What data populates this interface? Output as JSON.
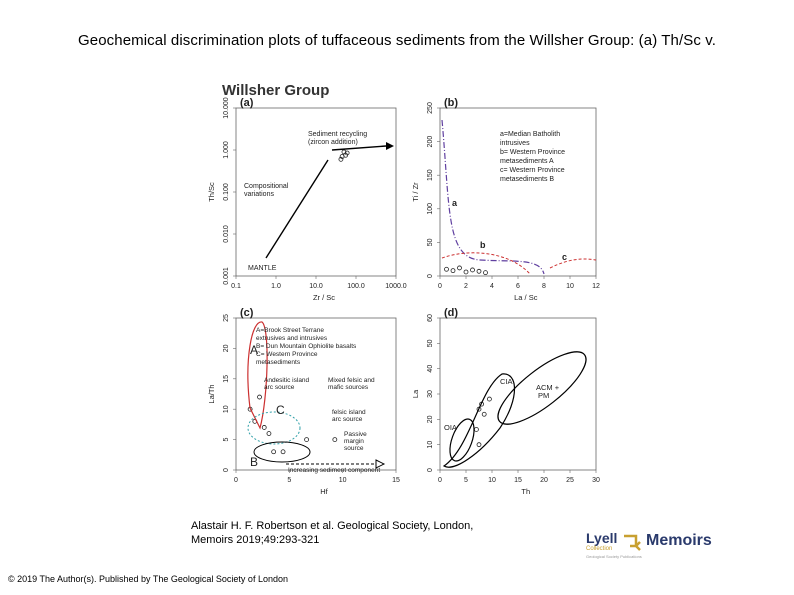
{
  "title": "Geochemical discrimination plots of tuffaceous sediments from the Willsher Group: (a) Th/Sc v.",
  "figure_heading": "Willsher Group",
  "citation_line1": "Alastair H. F. Robertson et al. Geological Society, London,",
  "citation_line2": "Memoirs 2019;49:293-321",
  "footer": "© 2019 The Author(s). Published by The Geological Society of London",
  "logo": {
    "lyell": "Lyell",
    "lyell_sub": "Collection",
    "lyell_tiny": "Geological Society Publications",
    "memoirs": "Memoirs",
    "accent_color": "#c8a030",
    "brand_color": "#2a3a6c"
  },
  "chart_data": [
    {
      "type": "scatter",
      "panel_label": "(a)",
      "xlabel": "Zr / Sc",
      "ylabel": "Th/Sc",
      "x_scale": "log",
      "y_scale": "log",
      "xlim": [
        0.1,
        1000
      ],
      "ylim": [
        0.001,
        10
      ],
      "x_ticks": [
        "0.1",
        "1.0",
        "10.0",
        "100.0",
        "1000.0"
      ],
      "y_ticks": [
        "0.001",
        "0.010",
        "0.100",
        "1.000",
        "10.000"
      ],
      "points": [
        {
          "x": 50,
          "y": 0.9
        },
        {
          "x": 55,
          "y": 0.75
        },
        {
          "x": 45,
          "y": 0.7
        },
        {
          "x": 60,
          "y": 0.85
        },
        {
          "x": 42,
          "y": 0.6
        }
      ],
      "annotations": [
        "Sediment recycling",
        "(zircon addition)",
        "Compositional",
        "variations",
        "MANTLE"
      ]
    },
    {
      "type": "scatter",
      "panel_label": "(b)",
      "xlabel": "La / Sc",
      "ylabel": "Ti / Zr",
      "xlim": [
        0,
        12
      ],
      "ylim": [
        0,
        250
      ],
      "x_ticks": [
        "0",
        "2",
        "4",
        "6",
        "8",
        "10",
        "12"
      ],
      "y_ticks": [
        "0",
        "50",
        "100",
        "150",
        "200",
        "250"
      ],
      "points": [
        {
          "x": 0.5,
          "y": 10
        },
        {
          "x": 1.0,
          "y": 8
        },
        {
          "x": 1.5,
          "y": 12
        },
        {
          "x": 2.0,
          "y": 6
        },
        {
          "x": 2.5,
          "y": 9
        },
        {
          "x": 3.0,
          "y": 7
        },
        {
          "x": 3.5,
          "y": 5
        }
      ],
      "annotations": [
        "a",
        "b",
        "c"
      ],
      "legend": [
        "a=Median Batholith",
        "intrusives",
        "b= Western Province",
        "metasediments A",
        "c= Western Province",
        "metasediments B"
      ]
    },
    {
      "type": "scatter",
      "panel_label": "(c)",
      "xlabel": "Hf",
      "ylabel": "La/Th",
      "xlim": [
        0,
        17
      ],
      "ylim": [
        0,
        25
      ],
      "x_ticks": [
        "0",
        "5",
        "10",
        "15"
      ],
      "y_ticks": [
        "0",
        "5",
        "10",
        "15",
        "20",
        "25"
      ],
      "points": [
        {
          "x": 1.5,
          "y": 10
        },
        {
          "x": 2.0,
          "y": 8
        },
        {
          "x": 2.5,
          "y": 12
        },
        {
          "x": 3.0,
          "y": 7
        },
        {
          "x": 3.5,
          "y": 6
        },
        {
          "x": 4.0,
          "y": 3
        },
        {
          "x": 5.0,
          "y": 3
        },
        {
          "x": 7.5,
          "y": 5
        },
        {
          "x": 10.5,
          "y": 5
        }
      ],
      "annotations": [
        "A",
        "B",
        "C",
        "Andesitic island",
        "arc source",
        "Mixed felsic and",
        "mafic sources",
        "felsic island",
        "arc source",
        "Passive",
        "margin",
        "source",
        "Increasing sediment component"
      ],
      "legend": [
        "A=Brook Street Terrane",
        "extrusives and intrusives",
        "B= Dun Mountain Ophiolite basalts",
        "C= Western Province",
        "metasediments"
      ]
    },
    {
      "type": "scatter",
      "panel_label": "(d)",
      "xlabel": "Th",
      "ylabel": "La",
      "xlim": [
        0,
        30
      ],
      "ylim": [
        0,
        60
      ],
      "x_ticks": [
        "0",
        "5",
        "10",
        "15",
        "20",
        "25",
        "30"
      ],
      "y_ticks": [
        "0",
        "10",
        "20",
        "30",
        "40",
        "50",
        "60"
      ],
      "points": [
        {
          "x": 7.5,
          "y": 24
        },
        {
          "x": 8.0,
          "y": 26
        },
        {
          "x": 8.5,
          "y": 22
        },
        {
          "x": 9.5,
          "y": 28
        },
        {
          "x": 7.0,
          "y": 16
        },
        {
          "x": 7.5,
          "y": 10
        }
      ],
      "annotations": [
        "CIA",
        "ACM +",
        "PM",
        "OIA"
      ]
    }
  ]
}
